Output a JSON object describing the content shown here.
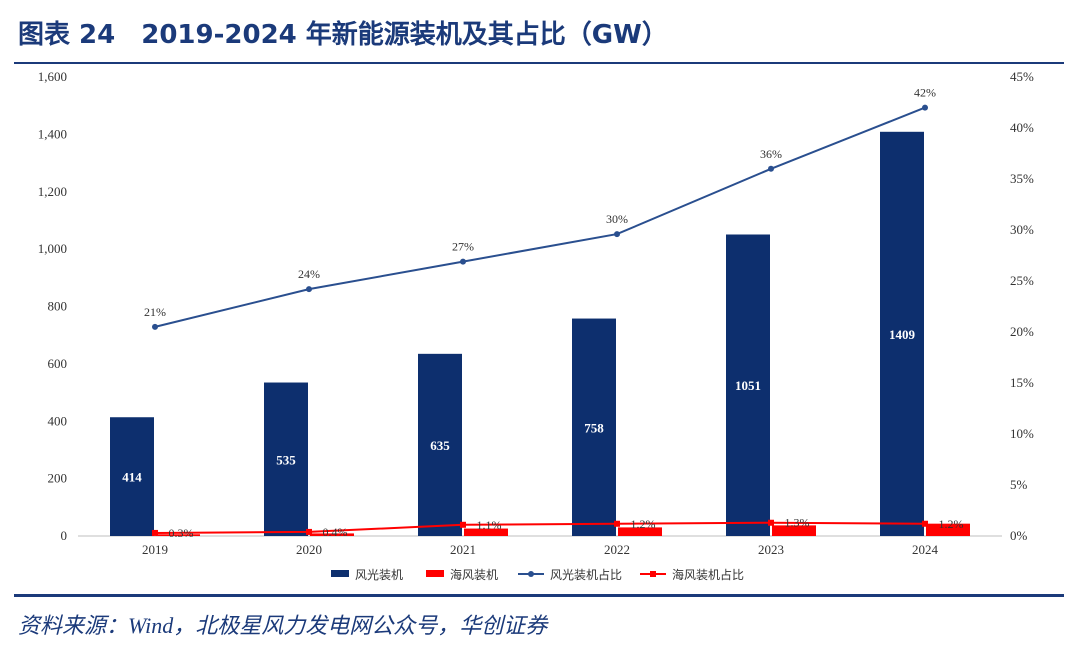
{
  "header": {
    "title": "图表 24　2019-2024 年新能源装机及其占比（GW）"
  },
  "footer": {
    "source": "资料来源：Wind，北极星风力发电网公众号，华创证券"
  },
  "chart_data": {
    "type": "bar",
    "title": "2019-2024 年新能源装机及其占比（GW）",
    "categories": [
      "2019",
      "2020",
      "2021",
      "2022",
      "2023",
      "2024"
    ],
    "ylim": [
      0,
      1600
    ],
    "yticks": [
      "0",
      "200",
      "400",
      "600",
      "800",
      "1,000",
      "1,200",
      "1,400",
      "1,600"
    ],
    "y2lim": [
      0,
      45
    ],
    "y2ticks": [
      "0%",
      "5%",
      "10%",
      "15%",
      "20%",
      "25%",
      "30%",
      "35%",
      "40%",
      "45%"
    ],
    "series": [
      {
        "name": "风光装机",
        "type": "bar",
        "axis": "left",
        "color": "#0d2f6e",
        "values": [
          414,
          535,
          635,
          758,
          1051,
          1409
        ],
        "labels": [
          "414",
          "535",
          "635",
          "758",
          "1051",
          "1409"
        ]
      },
      {
        "name": "海风装机",
        "type": "bar",
        "axis": "left",
        "color": "#ff0000",
        "values": [
          6,
          9,
          26,
          30,
          37,
          43
        ]
      },
      {
        "name": "风光装机占比",
        "type": "line",
        "axis": "right",
        "color": "#2a4f8f",
        "values": [
          20.5,
          24.2,
          26.9,
          29.6,
          36.0,
          42.0
        ],
        "labels": [
          "21%",
          "24%",
          "27%",
          "30%",
          "36%",
          "42%"
        ]
      },
      {
        "name": "海风装机占比",
        "type": "line",
        "axis": "right",
        "color": "#ff0000",
        "values": [
          0.3,
          0.4,
          1.1,
          1.2,
          1.3,
          1.2
        ],
        "labels": [
          "0.3%",
          "0.4%",
          "1.1%",
          "1.2%",
          "1.3%",
          "1.2%"
        ]
      }
    ],
    "legend": {
      "position": "bottom"
    },
    "grid": false
  }
}
